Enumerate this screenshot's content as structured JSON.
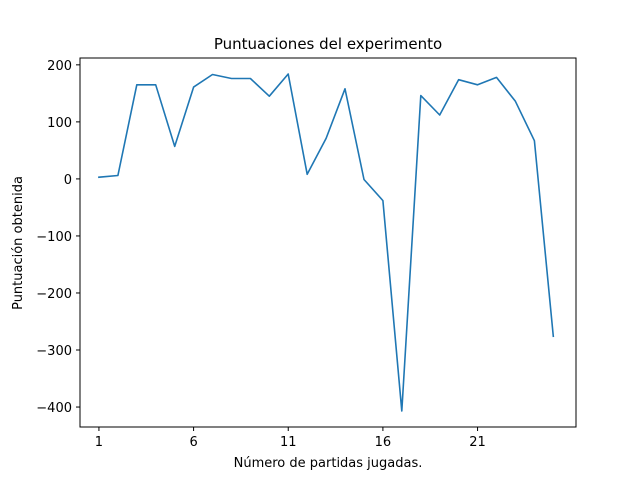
{
  "chart_data": {
    "type": "line",
    "title": "Puntuaciones del experimento",
    "xlabel": "Número de partidas jugadas.",
    "ylabel": "Puntuación obtenida",
    "xlim": [
      0.0,
      26.2
    ],
    "ylim": [
      -435,
      212
    ],
    "xticks": [
      1,
      6,
      11,
      16,
      21
    ],
    "yticks": [
      200,
      100,
      0,
      -100,
      -200,
      -300,
      -400
    ],
    "ytick_labels": [
      "200",
      "100",
      "0",
      "−100",
      "−200",
      "−300",
      "−400"
    ],
    "grid": false,
    "series": [
      {
        "color": "#1f77b4",
        "x": [
          1,
          2,
          3,
          4,
          5,
          6,
          7,
          8,
          9,
          10,
          11,
          12,
          13,
          14,
          15,
          16,
          17,
          18,
          19,
          20,
          21,
          22,
          23,
          24,
          25
        ],
        "y": [
          3,
          6,
          165,
          165,
          57,
          161,
          183,
          176,
          176,
          145,
          184,
          8,
          71,
          158,
          -1,
          -38,
          -407,
          146,
          112,
          174,
          165,
          178,
          136,
          67,
          -276
        ]
      }
    ]
  }
}
